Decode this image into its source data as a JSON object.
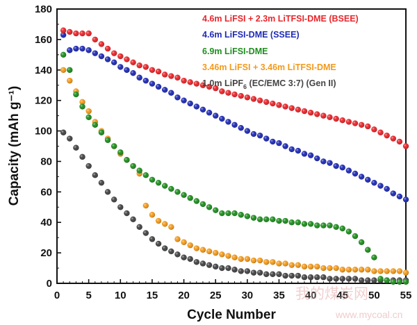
{
  "chart_data": {
    "type": "scatter",
    "xlabel": "Cycle Number",
    "ylabel": "Capacity (mAh g⁻¹)",
    "xlim": [
      0,
      55
    ],
    "ylim": [
      0,
      180
    ],
    "xticks": [
      0,
      5,
      10,
      15,
      20,
      25,
      30,
      35,
      40,
      45,
      50,
      55
    ],
    "yticks": [
      0,
      20,
      40,
      60,
      80,
      100,
      120,
      140,
      160,
      180
    ],
    "grid": false,
    "legend_position": "top-right",
    "series": [
      {
        "name": "4.6m LiFSI + 2.3m LiTFSI-DME (BSEE)",
        "color": "#e8262b",
        "x": [
          1,
          2,
          3,
          4,
          5,
          6,
          7,
          8,
          9,
          10,
          11,
          12,
          13,
          14,
          15,
          16,
          17,
          18,
          19,
          20,
          21,
          22,
          23,
          24,
          25,
          26,
          27,
          28,
          29,
          30,
          31,
          32,
          33,
          34,
          35,
          36,
          37,
          38,
          39,
          40,
          41,
          42,
          43,
          44,
          45,
          46,
          47,
          48,
          49,
          50,
          51,
          52,
          53,
          54,
          55
        ],
        "y": [
          166,
          165,
          164,
          164,
          164,
          160,
          157,
          154,
          151,
          149,
          147,
          145,
          143,
          142,
          140,
          139,
          137,
          136,
          135,
          133,
          132,
          131,
          130,
          129,
          128,
          126,
          125,
          124,
          123,
          122,
          121,
          120,
          119,
          118,
          117,
          116,
          115,
          114,
          113,
          112,
          111,
          110,
          109,
          108,
          107,
          106,
          105,
          104,
          103,
          101,
          99,
          97,
          95,
          93,
          90
        ]
      },
      {
        "name": "4.6m LiFSI-DME (SSEE)",
        "color": "#1f2bb5",
        "x": [
          1,
          2,
          3,
          4,
          5,
          6,
          7,
          8,
          9,
          10,
          11,
          12,
          13,
          14,
          15,
          16,
          17,
          18,
          19,
          20,
          21,
          22,
          23,
          24,
          25,
          26,
          27,
          28,
          29,
          30,
          31,
          32,
          33,
          34,
          35,
          36,
          37,
          38,
          39,
          40,
          41,
          42,
          43,
          44,
          45,
          46,
          47,
          48,
          49,
          50,
          51,
          52,
          53,
          54,
          55
        ],
        "y": [
          163,
          153,
          154,
          154,
          153,
          151,
          149,
          147,
          145,
          142,
          140,
          138,
          135,
          133,
          131,
          129,
          127,
          125,
          122,
          120,
          118,
          116,
          114,
          112,
          110,
          108,
          106,
          104,
          102,
          100,
          98,
          97,
          95,
          93,
          92,
          90,
          88,
          87,
          85,
          84,
          82,
          80,
          79,
          77,
          76,
          74,
          72,
          70,
          68,
          66,
          64,
          62,
          59,
          57,
          55
        ]
      },
      {
        "name": "6.9m LiFSI-DME",
        "color": "#1f8e1f",
        "x": [
          1,
          2,
          3,
          4,
          5,
          6,
          7,
          8,
          9,
          10,
          11,
          12,
          13,
          14,
          15,
          16,
          17,
          18,
          19,
          20,
          21,
          22,
          23,
          24,
          25,
          26,
          27,
          28,
          29,
          30,
          31,
          32,
          33,
          34,
          35,
          36,
          37,
          38,
          39,
          40,
          41,
          42,
          43,
          44,
          45,
          46,
          47,
          48,
          49,
          50,
          51,
          52,
          53,
          54,
          55
        ],
        "y": [
          150,
          140,
          124,
          116,
          109,
          104,
          99,
          94,
          90,
          86,
          81,
          77,
          74,
          71,
          68,
          66,
          64,
          62,
          60,
          58,
          56,
          54,
          52,
          50,
          48,
          46,
          46,
          46,
          45,
          44,
          43,
          42,
          42,
          42,
          41,
          41,
          40,
          40,
          39,
          39,
          38,
          38,
          38,
          37,
          36,
          34,
          31,
          27,
          22,
          17,
          3,
          2,
          1,
          1,
          1
        ]
      },
      {
        "name": "3.46m LiFSI + 3.46m LiTFSI-DME",
        "color": "#f29a1c",
        "x": [
          1,
          2,
          3,
          4,
          5,
          6,
          7,
          8,
          9,
          10,
          11,
          12,
          13,
          14,
          15,
          16,
          17,
          18,
          19,
          20,
          21,
          22,
          23,
          24,
          25,
          26,
          27,
          28,
          29,
          30,
          31,
          32,
          33,
          34,
          35,
          36,
          37,
          38,
          39,
          40,
          41,
          42,
          43,
          44,
          45,
          46,
          47,
          48,
          49,
          50,
          51,
          52,
          53,
          54,
          55
        ],
        "y": [
          140,
          133,
          126,
          119,
          113,
          106,
          100,
          95,
          90,
          85,
          81,
          77,
          72,
          51,
          45,
          41,
          39,
          37,
          29,
          27,
          25,
          23,
          22,
          21,
          20,
          19,
          18,
          17,
          16,
          16,
          15,
          15,
          14,
          14,
          13,
          13,
          12,
          12,
          11,
          11,
          11,
          10,
          10,
          10,
          9,
          9,
          9,
          9,
          9,
          8,
          8,
          8,
          8,
          8,
          7
        ]
      },
      {
        "name": "1.0m LiPF6 (EC/EMC 3:7) (Gen II)",
        "color": "#444444",
        "x": [
          1,
          2,
          3,
          4,
          5,
          6,
          7,
          8,
          9,
          10,
          11,
          12,
          13,
          14,
          15,
          16,
          17,
          18,
          19,
          20,
          21,
          22,
          23,
          24,
          25,
          26,
          27,
          28,
          29,
          30,
          31,
          32,
          33,
          34,
          35,
          36,
          37,
          38,
          39,
          40,
          41,
          42,
          43,
          44,
          45,
          46,
          47,
          48,
          49,
          50,
          51,
          52,
          53,
          54,
          55
        ],
        "y": [
          99,
          95,
          89,
          83,
          77,
          71,
          66,
          60,
          55,
          50,
          46,
          42,
          37,
          33,
          29,
          26,
          23,
          21,
          19,
          17,
          16,
          14,
          13,
          12,
          11,
          10,
          10,
          9,
          8,
          8,
          7,
          7,
          6,
          6,
          6,
          5,
          5,
          5,
          4,
          4,
          4,
          4,
          3,
          3,
          3,
          3,
          3,
          2,
          2,
          2,
          2,
          2,
          2,
          2,
          2
        ]
      }
    ]
  },
  "legend": {
    "entries": [
      {
        "text": "4.6m LiFSI + 2.3m LiTFSI-DME (BSEE)",
        "color": "#e8262b"
      },
      {
        "text": "4.6m LiFSI-DME (SSEE)",
        "color": "#1f2bb5"
      },
      {
        "text": "6.9m LiFSI-DME",
        "color": "#1f8e1f"
      },
      {
        "text": "3.46m LiFSI + 3.46m LiTFSI-DME",
        "color": "#f29a1c"
      },
      {
        "text_prefix": "1.0m LiPF",
        "text_sub": "6",
        "text_suffix": " (EC/EMC 3:7) (Gen II)",
        "color": "#444444"
      }
    ]
  },
  "watermark": {
    "text": "我的煤炭网",
    "url": "www.mycoal.cn"
  }
}
